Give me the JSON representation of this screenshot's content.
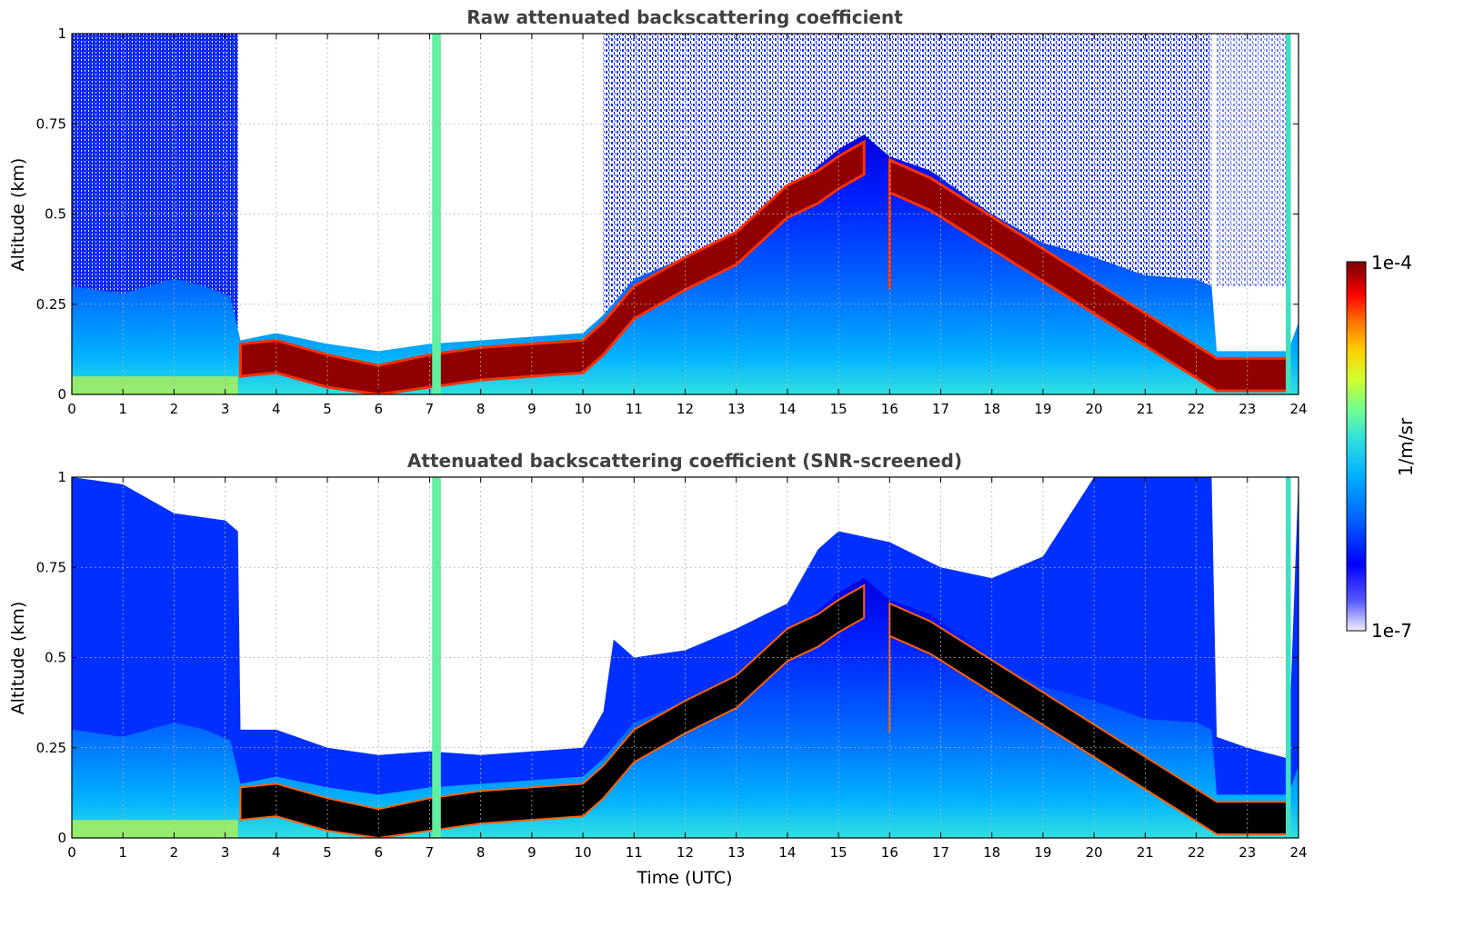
{
  "chart_data": [
    {
      "type": "heatmap",
      "title": "Raw attenuated backscattering coefficient",
      "xlabel": "",
      "ylabel": "Altitude (km)",
      "xlim": [
        0,
        24
      ],
      "ylim": [
        0,
        1
      ],
      "xticks": [
        "0",
        "1",
        "2",
        "3",
        "4",
        "5",
        "6",
        "7",
        "8",
        "9",
        "10",
        "11",
        "12",
        "13",
        "14",
        "15",
        "16",
        "17",
        "18",
        "19",
        "20",
        "21",
        "22",
        "23",
        "24"
      ],
      "yticks": [
        "0",
        "0.25",
        "0.5",
        "0.75",
        "1"
      ],
      "grid": true,
      "screened": false,
      "layer_top_km": [
        [
          0,
          0.3
        ],
        [
          1,
          0.28
        ],
        [
          2,
          0.32
        ],
        [
          2.6,
          0.3
        ],
        [
          3.1,
          0.27
        ],
        [
          3.3,
          0.15
        ],
        [
          4,
          0.17
        ],
        [
          5,
          0.14
        ],
        [
          6,
          0.12
        ],
        [
          7,
          0.14
        ],
        [
          8,
          0.15
        ],
        [
          9,
          0.16
        ],
        [
          10,
          0.17
        ],
        [
          10.4,
          0.22
        ],
        [
          11,
          0.32
        ],
        [
          12,
          0.38
        ],
        [
          13,
          0.45
        ],
        [
          14,
          0.55
        ],
        [
          14.5,
          0.62
        ],
        [
          15,
          0.68
        ],
        [
          15.5,
          0.72
        ],
        [
          16,
          0.66
        ],
        [
          16.8,
          0.62
        ],
        [
          17,
          0.6
        ],
        [
          18,
          0.5
        ],
        [
          19,
          0.42
        ],
        [
          20,
          0.38
        ],
        [
          21,
          0.33
        ],
        [
          22,
          0.32
        ],
        [
          22.3,
          0.3
        ],
        [
          22.4,
          0.12
        ],
        [
          23,
          0.12
        ],
        [
          23.8,
          0.12
        ],
        [
          24,
          0.2
        ]
      ],
      "dense_layer_top_km": [
        [
          3.3,
          0.14
        ],
        [
          4,
          0.15
        ],
        [
          5,
          0.11
        ],
        [
          6,
          0.08
        ],
        [
          7,
          0.11
        ],
        [
          8,
          0.13
        ],
        [
          9,
          0.14
        ],
        [
          10,
          0.15
        ],
        [
          10.4,
          0.2
        ],
        [
          11,
          0.3
        ],
        [
          12,
          0.38
        ],
        [
          13,
          0.45
        ],
        [
          14,
          0.58
        ],
        [
          14.6,
          0.62
        ],
        [
          15,
          0.66
        ],
        [
          15.5,
          0.7
        ],
        [
          16,
          0.65
        ],
        [
          16.8,
          0.6
        ],
        [
          22.4,
          0.1
        ],
        [
          23,
          0.1
        ],
        [
          23.8,
          0.1
        ]
      ]
    },
    {
      "type": "heatmap",
      "title": "Attenuated backscattering coefficient (SNR-screened)",
      "xlabel": "Time (UTC)",
      "ylabel": "Altitude (km)",
      "xlim": [
        0,
        24
      ],
      "ylim": [
        0,
        1
      ],
      "xticks": [
        "0",
        "1",
        "2",
        "3",
        "4",
        "5",
        "6",
        "7",
        "8",
        "9",
        "10",
        "11",
        "12",
        "13",
        "14",
        "15",
        "16",
        "17",
        "18",
        "19",
        "20",
        "21",
        "22",
        "23",
        "24"
      ],
      "yticks": [
        "0",
        "0.25",
        "0.5",
        "0.75",
        "1"
      ],
      "grid": true,
      "screened": true,
      "signal_top_km": [
        [
          0,
          1.0
        ],
        [
          1,
          0.98
        ],
        [
          2,
          0.9
        ],
        [
          3,
          0.88
        ],
        [
          3.25,
          0.85
        ],
        [
          3.3,
          0.3
        ],
        [
          4,
          0.3
        ],
        [
          5,
          0.25
        ],
        [
          6,
          0.23
        ],
        [
          7,
          0.24
        ],
        [
          8,
          0.23
        ],
        [
          9,
          0.24
        ],
        [
          10,
          0.25
        ],
        [
          10.4,
          0.35
        ],
        [
          10.6,
          0.55
        ],
        [
          11,
          0.5
        ],
        [
          12,
          0.52
        ],
        [
          13,
          0.58
        ],
        [
          14,
          0.65
        ],
        [
          14.6,
          0.8
        ],
        [
          15,
          0.85
        ],
        [
          16,
          0.82
        ],
        [
          17,
          0.75
        ],
        [
          18,
          0.72
        ],
        [
          19,
          0.78
        ],
        [
          20,
          1.0
        ],
        [
          22.3,
          1.0
        ],
        [
          22.4,
          0.28
        ],
        [
          23,
          0.25
        ],
        [
          23.8,
          0.22
        ],
        [
          24,
          1.0
        ]
      ]
    }
  ],
  "colorbar": {
    "label": "1/m/sr",
    "max_label": "1e-4",
    "min_label": "1e-7",
    "scale": "log",
    "range": [
      1e-07,
      0.0001
    ],
    "colormap": [
      "#f0f0ff",
      "#5a5aff",
      "#0000ff",
      "#0060ff",
      "#00b0ff",
      "#30e0e0",
      "#70ff90",
      "#d0ff30",
      "#ffd000",
      "#ff7000",
      "#ff0000",
      "#a00000",
      "#800000"
    ]
  }
}
